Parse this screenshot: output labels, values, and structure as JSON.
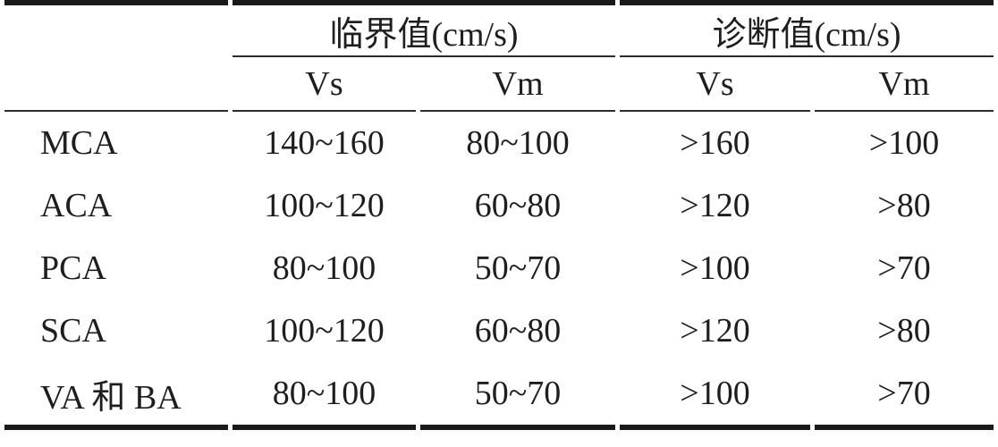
{
  "table": {
    "groups": [
      {
        "label": "临界值(cm/s)"
      },
      {
        "label": "诊断值(cm/s)"
      }
    ],
    "sub_headers": [
      "Vs",
      "Vm",
      "Vs",
      "Vm"
    ],
    "rows": [
      {
        "label": "MCA",
        "values": [
          "140~160",
          "80~100",
          ">160",
          ">100"
        ]
      },
      {
        "label": "ACA",
        "values": [
          "100~120",
          "60~80",
          ">120",
          ">80"
        ]
      },
      {
        "label": "PCA",
        "values": [
          "80~100",
          "50~70",
          ">100",
          ">70"
        ]
      },
      {
        "label": "SCA",
        "values": [
          "100~120",
          "60~80",
          ">120",
          ">80"
        ]
      },
      {
        "label": "VA 和 BA",
        "values": [
          "80~100",
          "50~70",
          ">100",
          ">70"
        ]
      }
    ],
    "colors": {
      "text": "#1e1e1e",
      "rule_thick": "#1a1a1a",
      "rule_thin": "#2b2b2b",
      "background": "#ffffff"
    }
  }
}
